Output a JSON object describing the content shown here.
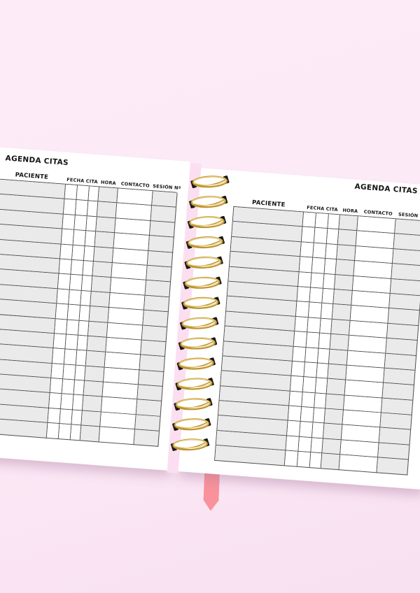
{
  "page_titles": {
    "left": "AGENDA CITAS",
    "right": "AGENDA CITAS"
  },
  "table": {
    "columns": [
      {
        "key": "paciente",
        "label": "PACIENTE",
        "span": 1,
        "shaded": true
      },
      {
        "key": "fecha-cita",
        "label": "FECHA CITA",
        "span": 3,
        "shaded": false
      },
      {
        "key": "hora",
        "label": "HORA",
        "span": 1,
        "shaded": true
      },
      {
        "key": "contacto",
        "label": "CONTACTO",
        "span": 1,
        "shaded": false
      },
      {
        "key": "sesion",
        "label": "SESIÓN Nº",
        "span": 1,
        "shaded": true
      }
    ],
    "row_count": 17,
    "rows_empty": true
  },
  "spine": {
    "ring_count": 14
  },
  "bookmark": {
    "style": "pointed-ribbon"
  },
  "colors": {
    "bg_top": "#fdecf8",
    "bg_bottom": "#f8e1f1",
    "page": "#ffffff",
    "cell_shade": "#eaeaea",
    "grid_line": "#4f4f4f",
    "ink": "#141414",
    "spine_pink": "#fbdff1",
    "ring_gold": "#bd9430",
    "ring_gold_light": "#eed484",
    "ribbon": "#f9929b"
  }
}
